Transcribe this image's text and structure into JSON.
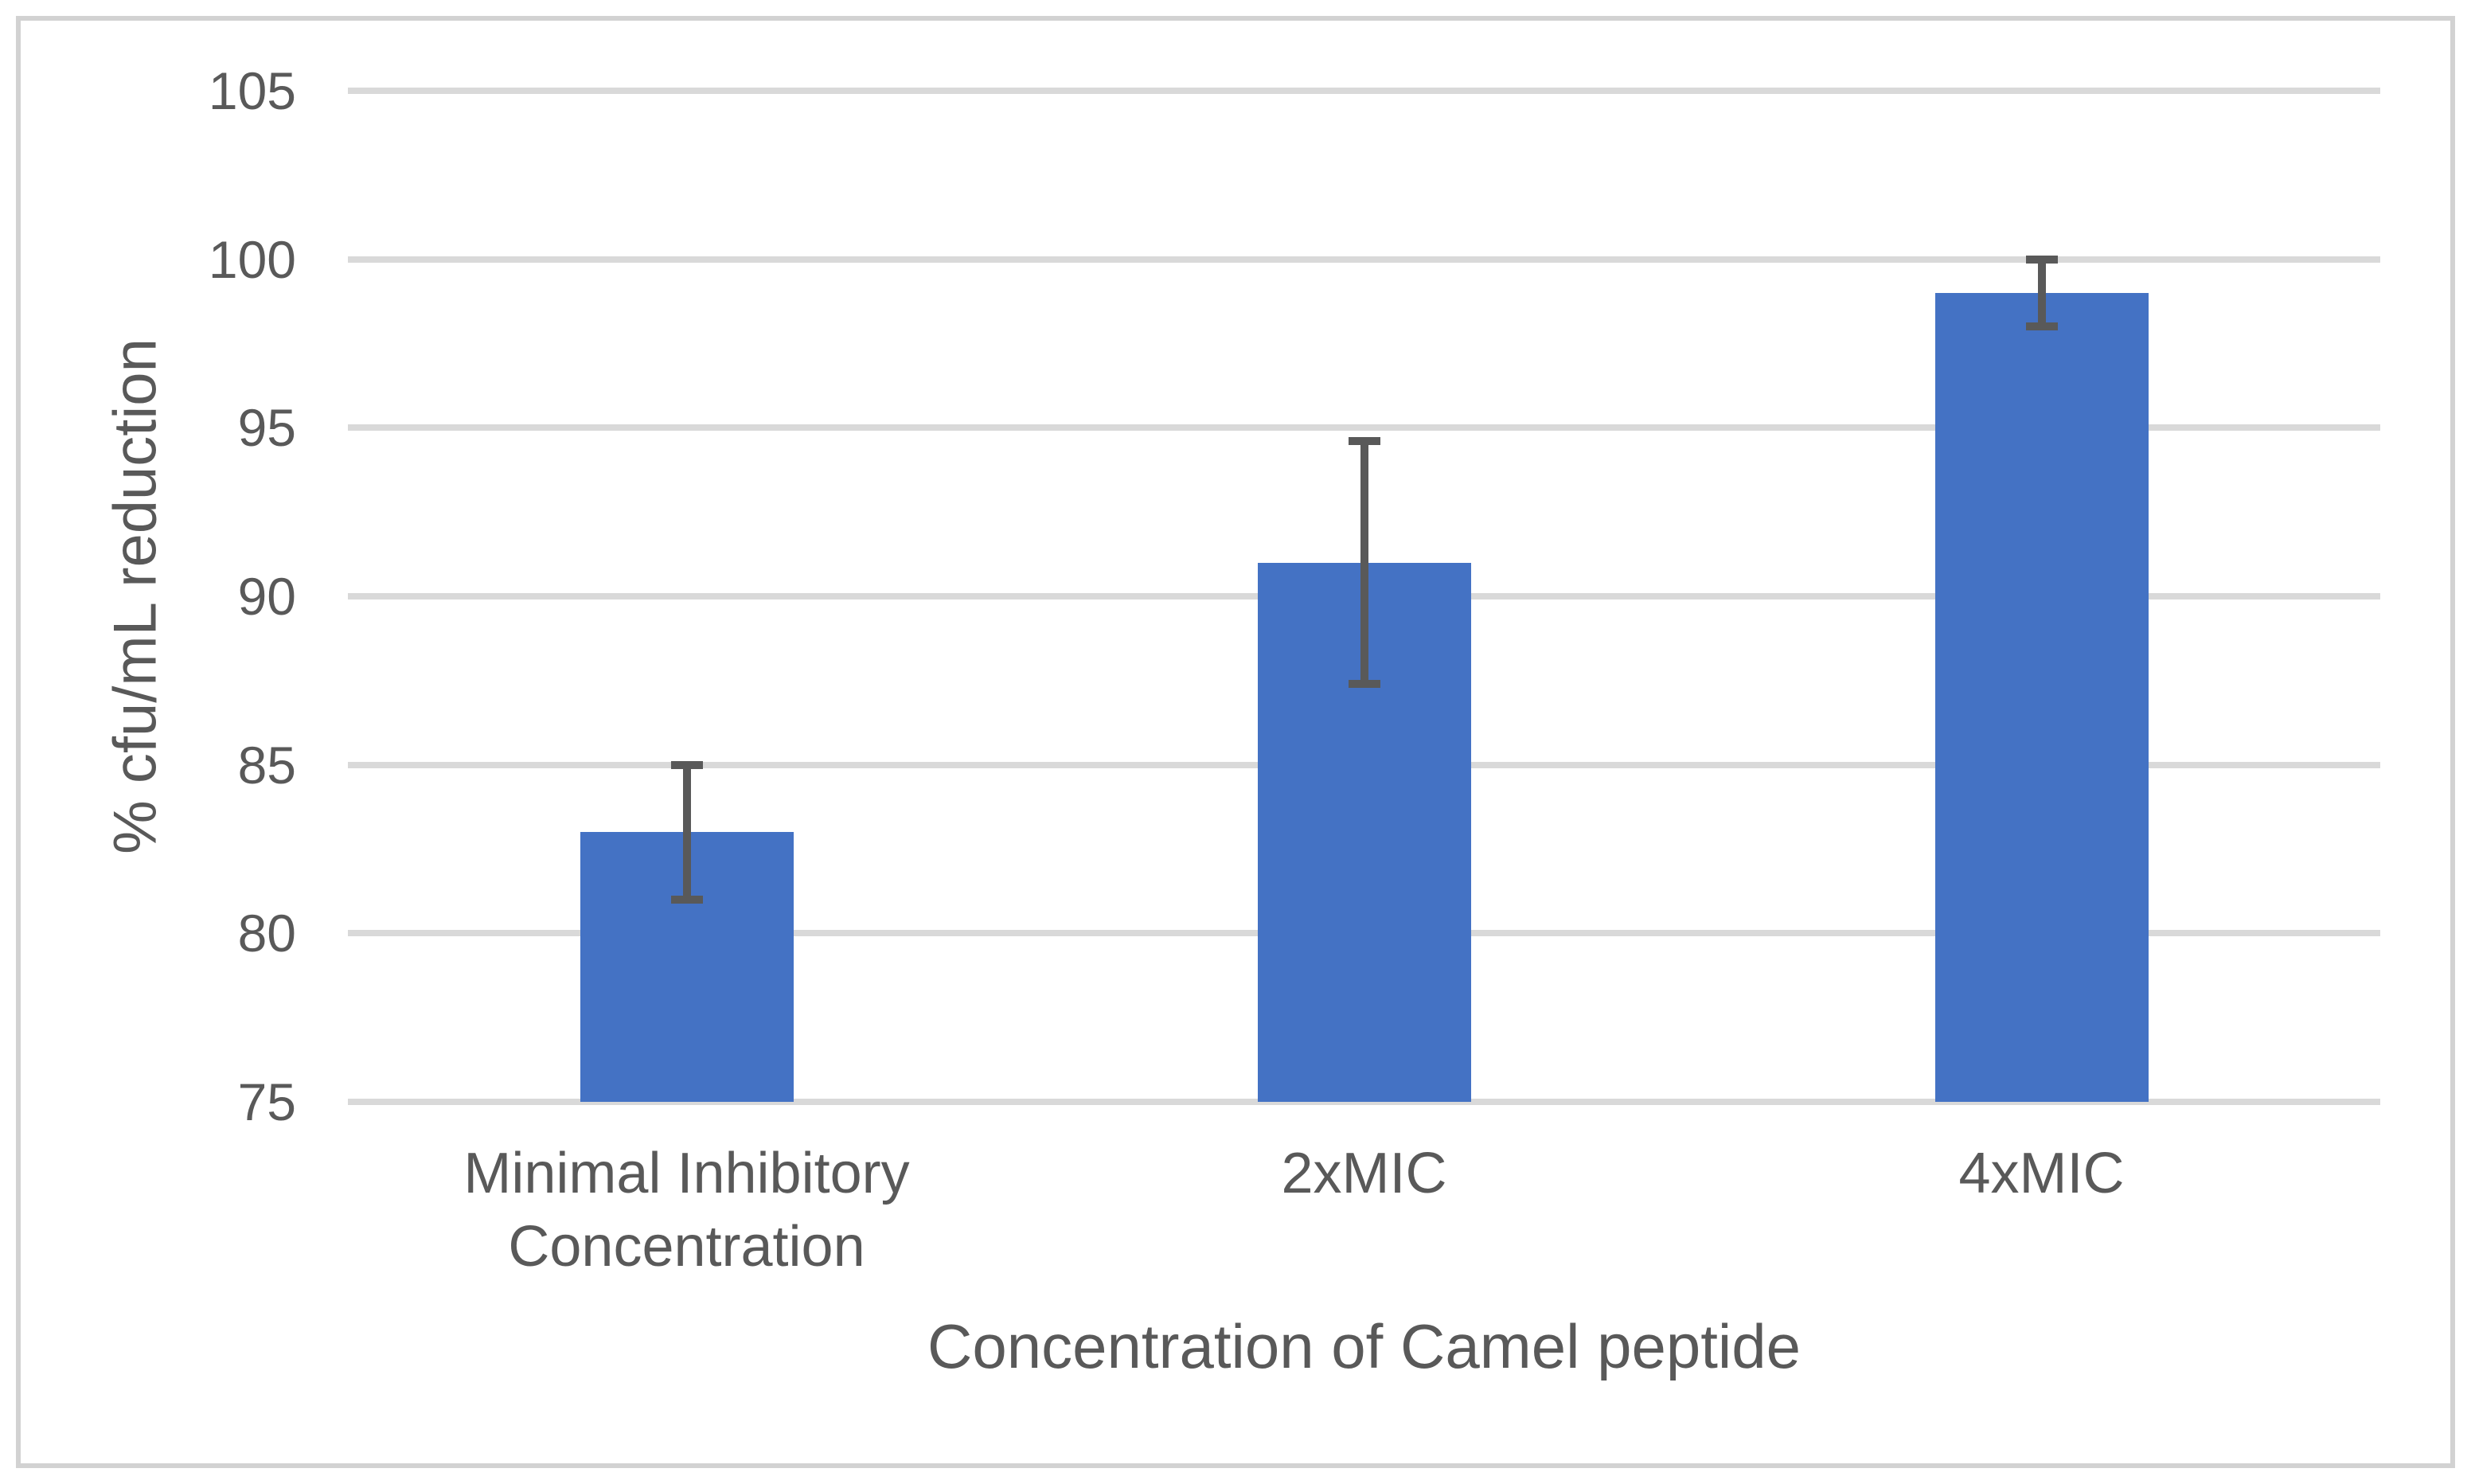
{
  "chart_data": {
    "type": "bar",
    "title": "",
    "categories": [
      "Minimal Inhibitory Concentration",
      "2xMIC",
      "4xMIC"
    ],
    "values": [
      83,
      91,
      99
    ],
    "error_plus": [
      2,
      3.6,
      1
    ],
    "error_minus": [
      2,
      3.6,
      1
    ],
    "xlabel": "Concentration of Camel peptide",
    "ylabel": "% cfu/mL reduction",
    "ylim": [
      75,
      105
    ],
    "yticks": [
      105,
      100,
      95,
      90,
      85,
      80,
      75
    ],
    "grid": true,
    "legend": false,
    "layout": {
      "bar_color": "#4472C4",
      "error_bar_color": "#595959",
      "gridline_color": "#D9D9D9",
      "text_color": "#595959",
      "border_color": "#D2D2D2"
    }
  }
}
